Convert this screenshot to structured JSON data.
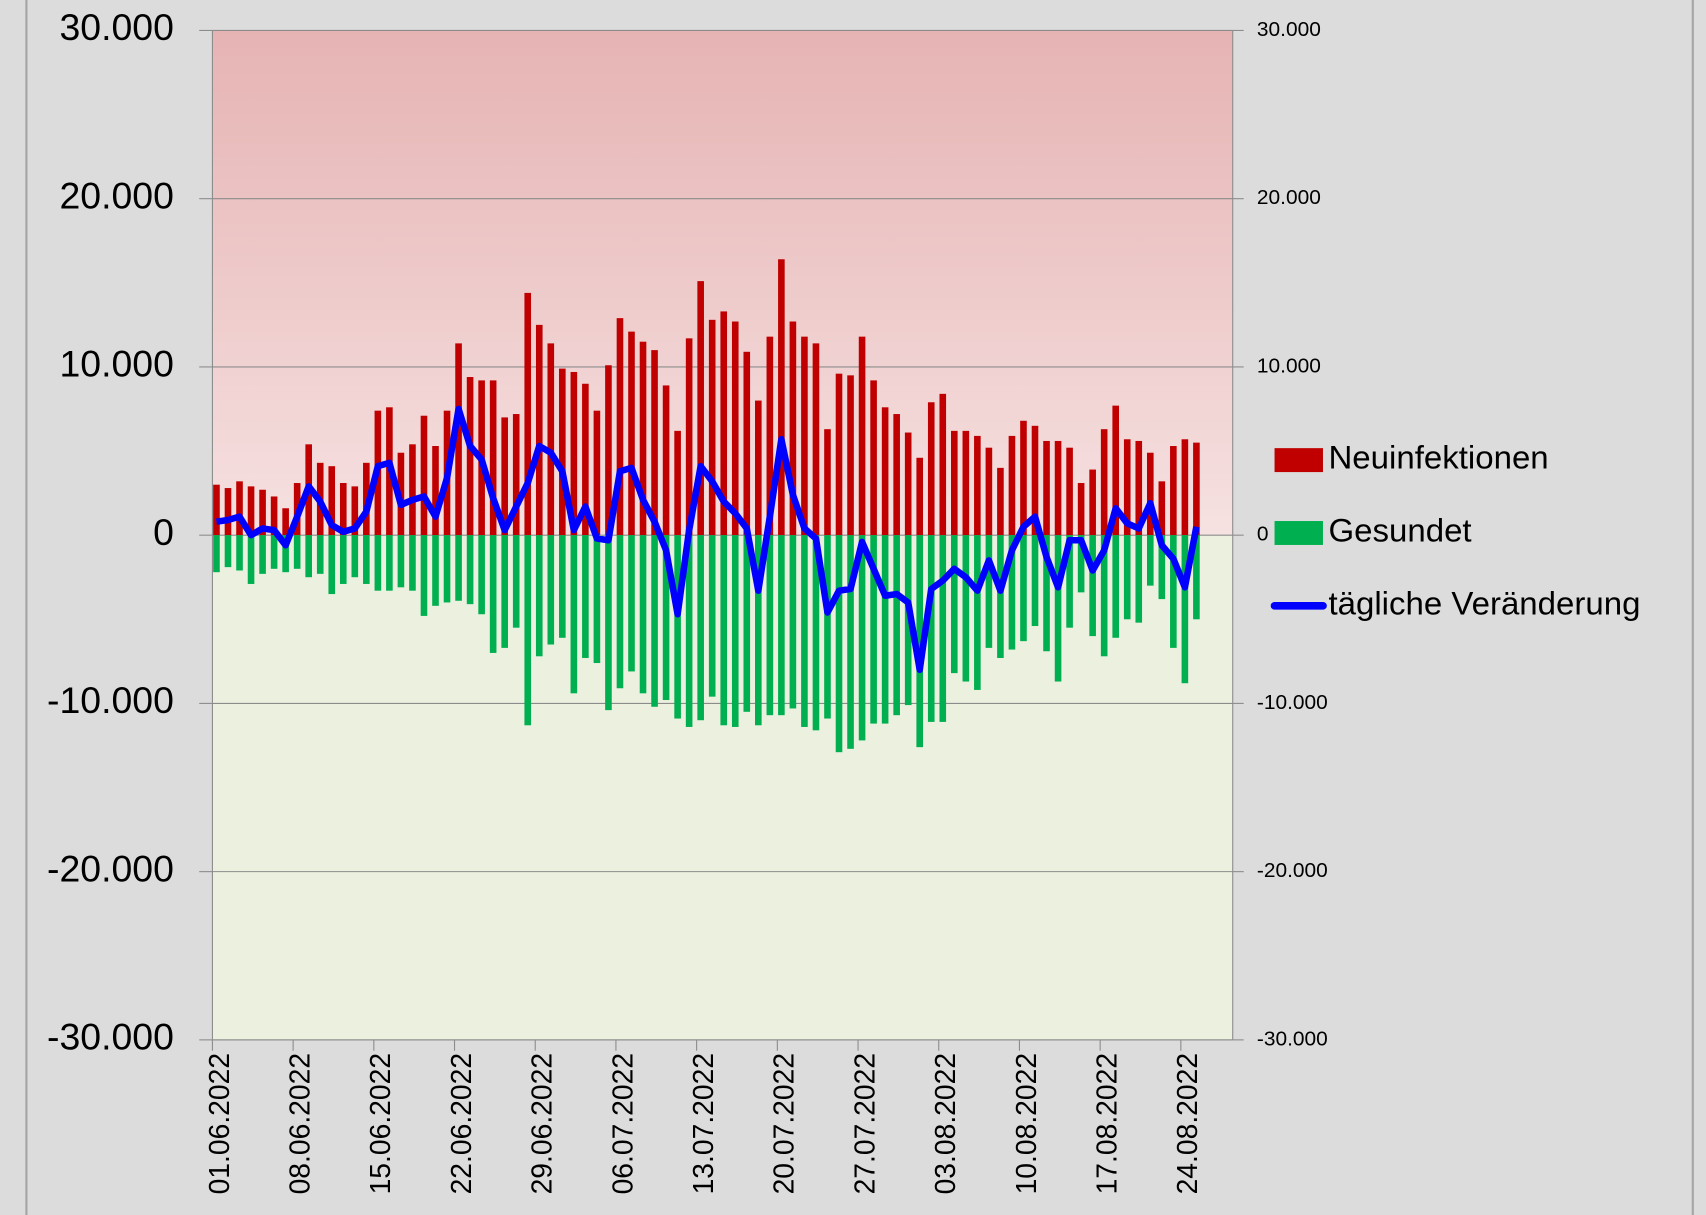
{
  "chart_data": {
    "type": "bar",
    "categories": [
      "01.06.2022",
      null,
      null,
      null,
      null,
      null,
      null,
      "08.06.2022",
      null,
      null,
      null,
      null,
      null,
      null,
      "15.06.2022",
      null,
      null,
      null,
      null,
      null,
      null,
      "22.06.2022",
      null,
      null,
      null,
      null,
      null,
      null,
      "29.06.2022",
      null,
      null,
      null,
      null,
      null,
      null,
      "06.07.2022",
      null,
      null,
      null,
      null,
      null,
      null,
      "13.07.2022",
      null,
      null,
      null,
      null,
      null,
      null,
      "20.07.2022",
      null,
      null,
      null,
      null,
      null,
      null,
      "27.07.2022",
      null,
      null,
      null,
      null,
      null,
      null,
      "03.08.2022",
      null,
      null,
      null,
      null,
      null,
      null,
      "10.08.2022",
      null,
      null,
      null,
      null,
      null,
      null,
      "17.08.2022",
      null,
      null,
      null,
      null,
      null,
      null,
      "24.08.2022",
      null
    ],
    "series": [
      {
        "name": "Neuinfektionen",
        "color": "#c00000",
        "type": "bar",
        "values": [
          3000,
          2800,
          3200,
          2900,
          2700,
          2300,
          1600,
          3100,
          5400,
          4300,
          4100,
          3100,
          2900,
          4300,
          7400,
          7600,
          4900,
          5400,
          7100,
          5300,
          7400,
          11400,
          9400,
          9200,
          9200,
          7000,
          7200,
          14400,
          12500,
          11400,
          9900,
          9700,
          9000,
          7400,
          10100,
          12900,
          12100,
          11500,
          11000,
          8900,
          6200,
          11700,
          15100,
          12800,
          13300,
          12700,
          10900,
          8000,
          11800,
          16400,
          12700,
          11800,
          11400,
          6300,
          9600,
          9500,
          11800,
          9200,
          7600,
          7200,
          6100,
          4600,
          7900,
          8400,
          6200,
          6200,
          5900,
          5200,
          4000,
          5900,
          6800,
          6500,
          5600,
          5600,
          5200,
          3100,
          3900,
          6300,
          7700,
          5700,
          5600,
          4900,
          3200,
          5300,
          5700,
          5500
        ]
      },
      {
        "name": "Gesundet",
        "color": "#00b050",
        "type": "bar",
        "values": [
          -2200,
          -1900,
          -2100,
          -2900,
          -2300,
          -2000,
          -2200,
          -2000,
          -2500,
          -2300,
          -3500,
          -2900,
          -2500,
          -2900,
          -3300,
          -3300,
          -3100,
          -3300,
          -4800,
          -4200,
          -4000,
          -3900,
          -4100,
          -4700,
          -7000,
          -6700,
          -5500,
          -11300,
          -7200,
          -6500,
          -6100,
          -9400,
          -7300,
          -7600,
          -10400,
          -9100,
          -8100,
          -9400,
          -10200,
          -9800,
          -10900,
          -11400,
          -11000,
          -9600,
          -11300,
          -11400,
          -10500,
          -11300,
          -10700,
          -10700,
          -10300,
          -11400,
          -11600,
          -10900,
          -12900,
          -12700,
          -12200,
          -11200,
          -11200,
          -10700,
          -10100,
          -12600,
          -11100,
          -11100,
          -8200,
          -8700,
          -9200,
          -6700,
          -7300,
          -6800,
          -6300,
          -5400,
          -6900,
          -8700,
          -5500,
          -3400,
          -6000,
          -7200,
          -6100,
          -5000,
          -5200,
          -3000,
          -3800,
          -6700,
          -8800,
          -5000
        ]
      },
      {
        "name": "tägliche Veränderung",
        "color": "#0000ff",
        "type": "line",
        "values": [
          800,
          900,
          1100,
          0,
          400,
          300,
          -600,
          1100,
          2900,
          2000,
          600,
          200,
          400,
          1400,
          4100,
          4300,
          1800,
          2100,
          2300,
          1100,
          3400,
          7500,
          5300,
          4500,
          2200,
          300,
          1700,
          3100,
          5300,
          4900,
          3800,
          300,
          1700,
          -200,
          -300,
          3800,
          4000,
          2100,
          800,
          -900,
          -4700,
          300,
          4100,
          3200,
          2000,
          1300,
          400,
          -3300,
          1100,
          5700,
          2400,
          400,
          -200,
          -4600,
          -3300,
          -3200,
          -400,
          -2000,
          -3600,
          -3500,
          -4000,
          -8000,
          -3200,
          -2700,
          -2000,
          -2500,
          -3300,
          -1500,
          -3300,
          -900,
          500,
          1100,
          -1300,
          -3100,
          -300,
          -300,
          -2100,
          -900,
          1600,
          700,
          400,
          1900,
          -600,
          -1400,
          -3100,
          500
        ]
      }
    ],
    "ylim": [
      -30000,
      30000
    ],
    "yticks": [
      {
        "value": -30000,
        "label": "-30.000"
      },
      {
        "value": -20000,
        "label": "-20.000"
      },
      {
        "value": -10000,
        "label": "-10.000"
      },
      0,
      {
        "value": 10000,
        "label": "10.000"
      },
      {
        "value": 20000,
        "label": "20.000"
      },
      {
        "value": 30000,
        "label": "30.000"
      }
    ],
    "y2lim": [
      -30000,
      30000
    ],
    "y2ticks": [
      {
        "value": -30000,
        "label": "-30.000"
      },
      {
        "value": -20000,
        "label": "-20.000"
      },
      {
        "value": -10000,
        "label": "-10.000"
      },
      0,
      {
        "value": 10000,
        "label": "10.000"
      },
      {
        "value": 20000,
        "label": "20.000"
      },
      {
        "value": 30000,
        "label": "30.000"
      }
    ],
    "grid": true,
    "legend": "right"
  }
}
